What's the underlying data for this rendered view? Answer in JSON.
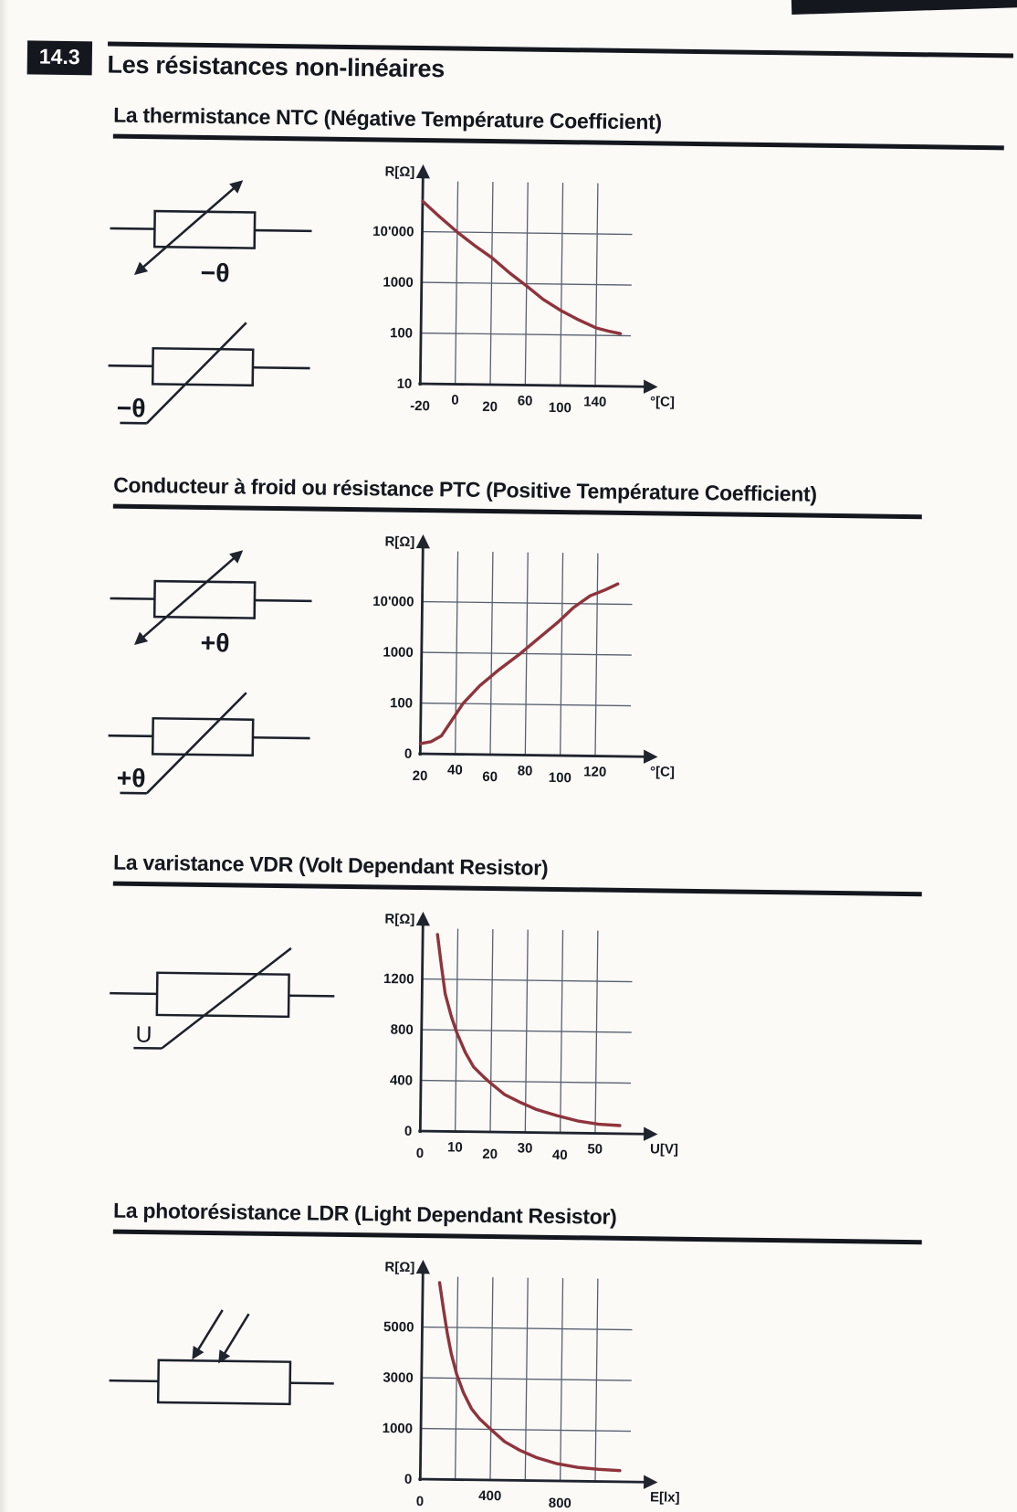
{
  "page": {
    "section_number": "14.3",
    "title": "Les résistances non-linéaires"
  },
  "colors": {
    "curve": "#8f333c",
    "ink": "#14171e"
  },
  "sections": [
    {
      "heading": "La thermistance NTC (Négative Température Coefficient)",
      "symbols": [
        {
          "type": "arrow-resistor",
          "label": "−θ"
        },
        {
          "type": "bent-line-resistor",
          "label": "−θ"
        }
      ]
    },
    {
      "heading": "Conducteur à froid ou résistance PTC (Positive Température Coefficient)",
      "symbols": [
        {
          "type": "arrow-resistor",
          "label": "+θ"
        },
        {
          "type": "bent-line-resistor",
          "label": "+θ"
        }
      ]
    },
    {
      "heading": "La varistance VDR (Volt Dependant Resistor)",
      "symbols": [
        {
          "type": "bent-line-resistor",
          "label": "U"
        }
      ]
    },
    {
      "heading": "La photorésistance LDR (Light Dependant Resistor)",
      "symbols": [
        {
          "type": "light-arrows-resistor",
          "label": ""
        }
      ]
    }
  ],
  "chart_data": [
    {
      "id": "ntc",
      "type": "line",
      "y_scale": "log",
      "ylabel": "R[Ω]",
      "xlabel": "°[C]",
      "yticks": [
        {
          "label": "10'000",
          "f": 0.75
        },
        {
          "label": "1000",
          "f": 0.5
        },
        {
          "label": "100",
          "f": 0.25
        },
        {
          "label": "10",
          "f": 0
        }
      ],
      "xticks": [
        {
          "label": "-20",
          "f": 0
        },
        {
          "label": "0",
          "f": 0.1667
        },
        {
          "label": "20",
          "f": 0.3333
        },
        {
          "label": "60",
          "f": 0.5
        },
        {
          "label": "100",
          "f": 0.6667
        },
        {
          "label": "140",
          "f": 0.8333
        }
      ],
      "x_values": [
        -20,
        0,
        20,
        60,
        100,
        140
      ],
      "y_estimates": [
        40000,
        10000,
        3200,
        900,
        300,
        140
      ],
      "curve": [
        [
          0,
          0.9
        ],
        [
          0.08,
          0.826
        ],
        [
          0.167,
          0.75
        ],
        [
          0.25,
          0.685
        ],
        [
          0.333,
          0.626
        ],
        [
          0.42,
          0.551
        ],
        [
          0.5,
          0.489
        ],
        [
          0.58,
          0.424
        ],
        [
          0.667,
          0.369
        ],
        [
          0.75,
          0.325
        ],
        [
          0.833,
          0.287
        ],
        [
          0.9,
          0.27
        ],
        [
          0.95,
          0.26
        ]
      ]
    },
    {
      "id": "ptc",
      "type": "line",
      "y_scale": "log",
      "ylabel": "R[Ω]",
      "xlabel": "°[C]",
      "yticks": [
        {
          "label": "10'000",
          "f": 0.75
        },
        {
          "label": "1000",
          "f": 0.5
        },
        {
          "label": "100",
          "f": 0.25
        },
        {
          "label": "0",
          "f": 0
        }
      ],
      "xticks": [
        {
          "label": "20",
          "f": 0
        },
        {
          "label": "40",
          "f": 0.1667
        },
        {
          "label": "60",
          "f": 0.3333
        },
        {
          "label": "80",
          "f": 0.5
        },
        {
          "label": "100",
          "f": 0.6667
        },
        {
          "label": "120",
          "f": 0.8333
        }
      ],
      "x_values": [
        20,
        40,
        60,
        80,
        100,
        120
      ],
      "y_estimates": [
        20,
        60,
        300,
        1200,
        4600,
        16000
      ],
      "curve": [
        [
          0,
          0.05
        ],
        [
          0.05,
          0.06
        ],
        [
          0.1,
          0.09
        ],
        [
          0.15,
          0.17
        ],
        [
          0.2,
          0.25
        ],
        [
          0.28,
          0.34
        ],
        [
          0.37,
          0.42
        ],
        [
          0.47,
          0.5
        ],
        [
          0.56,
          0.58
        ],
        [
          0.65,
          0.66
        ],
        [
          0.72,
          0.73
        ],
        [
          0.8,
          0.79
        ],
        [
          0.87,
          0.82
        ],
        [
          0.93,
          0.85
        ]
      ]
    },
    {
      "id": "vdr",
      "type": "line",
      "y_scale": "linear",
      "ylabel": "R[Ω]",
      "xlabel": "U[V]",
      "yticks": [
        {
          "label": "1200",
          "f": 0.75
        },
        {
          "label": "800",
          "f": 0.5
        },
        {
          "label": "400",
          "f": 0.25
        },
        {
          "label": "0",
          "f": 0
        }
      ],
      "xticks": [
        {
          "label": "0",
          "f": 0
        },
        {
          "label": "10",
          "f": 0.1667
        },
        {
          "label": "20",
          "f": 0.3333
        },
        {
          "label": "30",
          "f": 0.5
        },
        {
          "label": "40",
          "f": 0.6667
        },
        {
          "label": "50",
          "f": 0.8333
        }
      ],
      "x_values": [
        10,
        20,
        30,
        40,
        50
      ],
      "y_estimates": [
        780,
        385,
        230,
        135,
        70
      ],
      "curve": [
        [
          0.07,
          0.97
        ],
        [
          0.09,
          0.82
        ],
        [
          0.11,
          0.68
        ],
        [
          0.14,
          0.57
        ],
        [
          0.167,
          0.49
        ],
        [
          0.21,
          0.39
        ],
        [
          0.25,
          0.32
        ],
        [
          0.3,
          0.27
        ],
        [
          0.333,
          0.24
        ],
        [
          0.4,
          0.185
        ],
        [
          0.47,
          0.15
        ],
        [
          0.55,
          0.115
        ],
        [
          0.65,
          0.085
        ],
        [
          0.75,
          0.06
        ],
        [
          0.85,
          0.045
        ],
        [
          0.95,
          0.04
        ]
      ]
    },
    {
      "id": "ldr",
      "type": "line",
      "y_scale": "linear",
      "ylabel": "R[Ω]",
      "xlabel": "E[lx]",
      "yticks": [
        {
          "label": "5000",
          "f": 0.75
        },
        {
          "label": "3000",
          "f": 0.5
        },
        {
          "label": "1000",
          "f": 0.25
        },
        {
          "label": "0",
          "f": 0
        }
      ],
      "xticks": [
        {
          "label": "0",
          "f": 0
        },
        {
          "label": "400",
          "f": 0.3333
        },
        {
          "label": "800",
          "f": 0.6667
        }
      ],
      "x_values": [
        200,
        400,
        600,
        800,
        1000
      ],
      "y_estimates": [
        3100,
        1000,
        520,
        260,
        200
      ],
      "curve": [
        [
          0.08,
          0.97
        ],
        [
          0.1,
          0.84
        ],
        [
          0.12,
          0.72
        ],
        [
          0.14,
          0.62
        ],
        [
          0.167,
          0.52
        ],
        [
          0.2,
          0.43
        ],
        [
          0.24,
          0.35
        ],
        [
          0.28,
          0.3
        ],
        [
          0.333,
          0.25
        ],
        [
          0.4,
          0.19
        ],
        [
          0.47,
          0.15
        ],
        [
          0.55,
          0.115
        ],
        [
          0.65,
          0.085
        ],
        [
          0.75,
          0.068
        ],
        [
          0.85,
          0.06
        ],
        [
          0.95,
          0.055
        ]
      ]
    }
  ]
}
